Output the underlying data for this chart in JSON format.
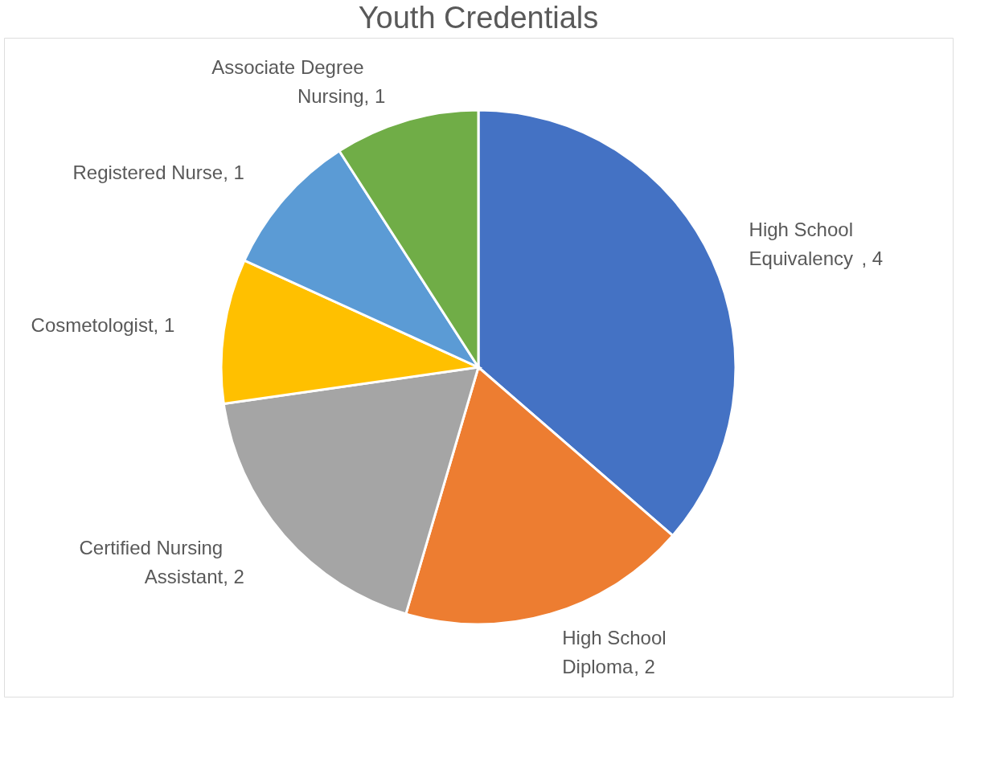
{
  "chart_data": {
    "type": "pie",
    "title": "Youth Credentials",
    "categories": [
      "High School Equivalency",
      "High School Diploma",
      "Certified Nursing Assistant",
      "Cosmetologist",
      "Registered Nurse",
      "Associate Degree Nursing"
    ],
    "values": [
      4,
      2,
      2,
      1,
      1,
      1
    ],
    "colors": [
      "#4472c4",
      "#ed7d31",
      "#a5a5a5",
      "#ffc000",
      "#5b9bd5",
      "#70ad47"
    ],
    "value_labels": [
      ", 4",
      ", 2",
      ", 2",
      ", 1",
      ", 1",
      ", 1"
    ],
    "legend": false
  }
}
